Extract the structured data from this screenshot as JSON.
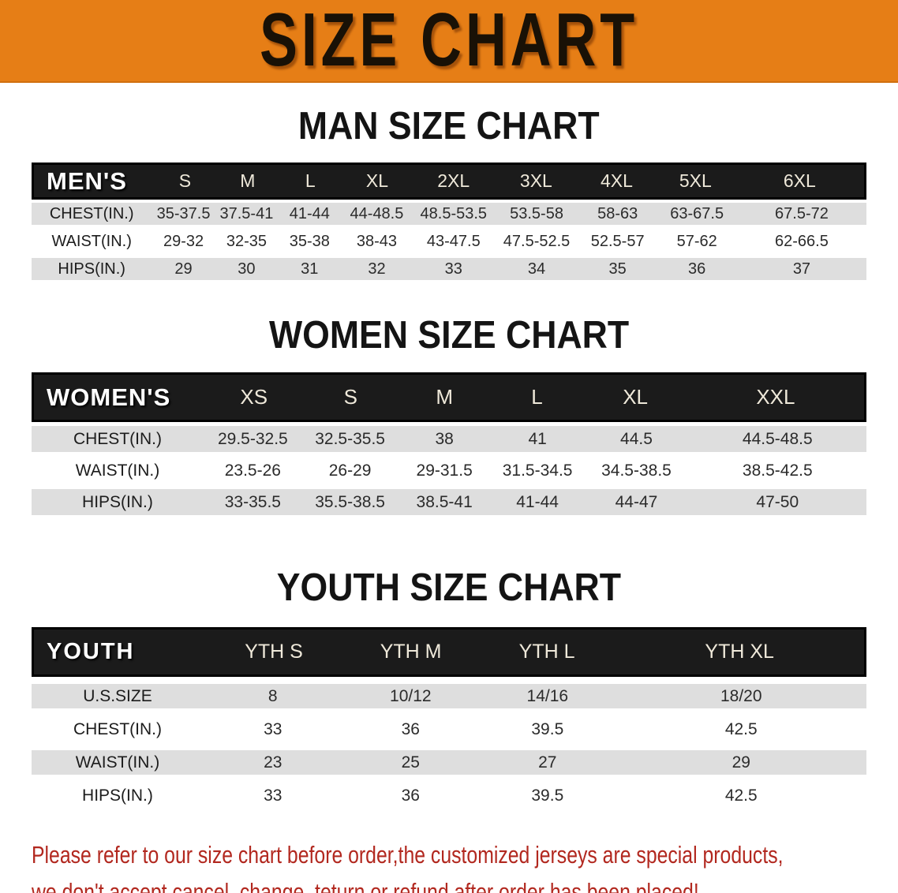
{
  "banner": {
    "title": "SIZE CHART",
    "bg_color": "#E67E16"
  },
  "sections": [
    {
      "id": "men",
      "heading": "MAN SIZE CHART",
      "table": {
        "label": "MEN'S",
        "columns": [
          "S",
          "M",
          "L",
          "XL",
          "2XL",
          "3XL",
          "4XL",
          "5XL",
          "6XL"
        ],
        "rows": [
          {
            "label": "CHEST(IN.)",
            "values": [
              "35-37.5",
              "37.5-41",
              "41-44",
              "44-48.5",
              "48.5-53.5",
              "53.5-58",
              "58-63",
              "63-67.5",
              "67.5-72"
            ]
          },
          {
            "label": "WAIST(IN.)",
            "values": [
              "29-32",
              "32-35",
              "35-38",
              "38-43",
              "43-47.5",
              "47.5-52.5",
              "52.5-57",
              "57-62",
              "62-66.5"
            ]
          },
          {
            "label": "HIPS(IN.)",
            "values": [
              "29",
              "30",
              "31",
              "32",
              "33",
              "34",
              "35",
              "36",
              "37"
            ]
          }
        ]
      }
    },
    {
      "id": "women",
      "heading": "WOMEN SIZE CHART",
      "table": {
        "label": "WOMEN'S",
        "columns": [
          "XS",
          "S",
          "M",
          "L",
          "XL",
          "XXL"
        ],
        "rows": [
          {
            "label": "CHEST(IN.)",
            "values": [
              "29.5-32.5",
              "32.5-35.5",
              "38",
              "41",
              "44.5",
              "44.5-48.5"
            ]
          },
          {
            "label": "WAIST(IN.)",
            "values": [
              "23.5-26",
              "26-29",
              "29-31.5",
              "31.5-34.5",
              "34.5-38.5",
              "38.5-42.5"
            ]
          },
          {
            "label": "HIPS(IN.)",
            "values": [
              "33-35.5",
              "35.5-38.5",
              "38.5-41",
              "41-44",
              "44-47",
              "47-50"
            ]
          }
        ]
      }
    },
    {
      "id": "youth",
      "heading": "YOUTH SIZE CHART",
      "table": {
        "label": "YOUTH",
        "columns": [
          "YTH S",
          "YTH M",
          "YTH L",
          "YTH XL"
        ],
        "rows": [
          {
            "label": "U.S.SIZE",
            "values": [
              "8",
              "10/12",
              "14/16",
              "18/20"
            ]
          },
          {
            "label": "CHEST(IN.)",
            "values": [
              "33",
              "36",
              "39.5",
              "42.5"
            ]
          },
          {
            "label": "WAIST(IN.)",
            "values": [
              "23",
              "25",
              "27",
              "29"
            ]
          },
          {
            "label": "HIPS(IN.)",
            "values": [
              "33",
              "36",
              "39.5",
              "42.5"
            ]
          }
        ]
      }
    }
  ],
  "disclaimer": {
    "lines": [
      "Please refer to our size chart before order,the customized jerseys are special products,",
      "we don't accept cancel, change, teturn or refund after order has been placed!"
    ],
    "color": "#B2281F"
  },
  "colors": {
    "banner_orange": "#E67E16",
    "table_header_black": "#1B1B1B",
    "stripe_gray": "#DEDEDE",
    "header_label_text": "#FFFFFF",
    "header_size_text": "#EFE9DA",
    "body_text": "#2B2B2B",
    "disclaimer_red": "#B2281F"
  }
}
